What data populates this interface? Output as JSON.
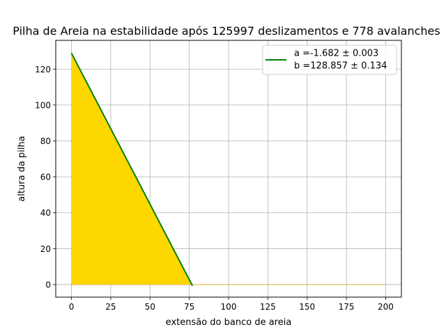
{
  "chart_data": {
    "type": "area",
    "title": "Pilha de Areia na estabilidade após 125997 deslizamentos e 778 avalanches",
    "xlabel": "extensão do banco de areia",
    "ylabel": "altura da pilha",
    "xlim": [
      -10,
      210
    ],
    "ylim": [
      -7,
      136
    ],
    "x_ticks": [
      0,
      25,
      50,
      75,
      100,
      125,
      150,
      175,
      200
    ],
    "y_ticks": [
      0,
      20,
      40,
      60,
      80,
      100,
      120
    ],
    "grid": true,
    "legend_position": "top-right",
    "series": [
      {
        "kind": "filled-area",
        "color": "#ffd700",
        "x": [
          0,
          76.6,
          77,
          200
        ],
        "y": [
          128.857,
          0,
          0,
          0
        ]
      },
      {
        "kind": "fit-line",
        "color": "#008000",
        "legend_lines": [
          "a =-1.682 ± 0.003",
          "b =128.857 ± 0.134"
        ],
        "slope": -1.682,
        "intercept": 128.857,
        "x_range": [
          0,
          77
        ]
      }
    ]
  }
}
